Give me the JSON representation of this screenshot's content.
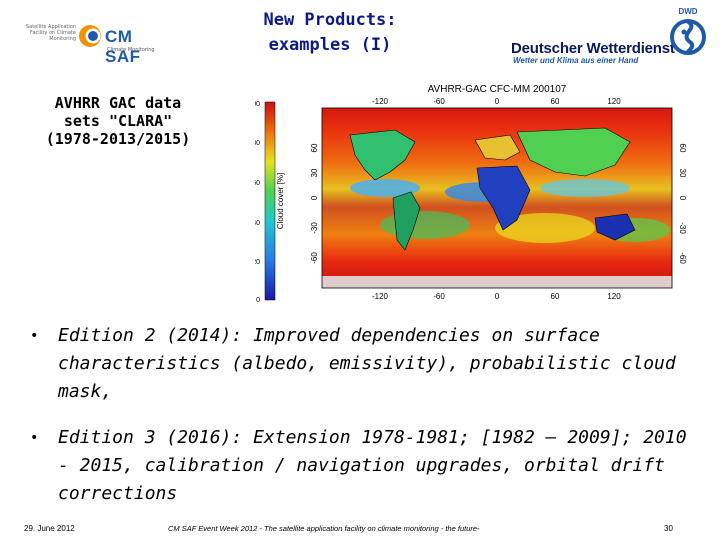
{
  "header": {
    "left_logo_small_text": "Satellite Application Facility on Climate Monitoring",
    "left_logo_name": "CM SAF",
    "left_logo_sub": "Climate Monitoring",
    "title_line1": "New Products:",
    "title_line2": "examples (I)",
    "right_logo_name": "Deutscher Wetterdienst",
    "right_logo_slogan": "Wetter und Klima aus einer Hand",
    "right_logo_abbrev": "DWD"
  },
  "subtitle": {
    "line1": "AVHRR GAC data",
    "line2": "sets \"CLARA\"",
    "line3": "(1978-2013/2015)"
  },
  "figure": {
    "map_title": "AVHRR-GAC CFC-MM 200107",
    "colorbar_label": "Cloud cover [%]",
    "colorbar_ticks": [
      "100",
      "80",
      "60",
      "40",
      "20",
      "0"
    ],
    "top_lon_ticks": [
      "-120",
      "-60",
      "0",
      "60",
      "120"
    ],
    "bottom_lon_ticks": [
      "-120",
      "-60",
      "0",
      "60",
      "120"
    ],
    "left_lat_ticks": [
      "60",
      "30",
      "0",
      "-30",
      "-60"
    ],
    "right_lat_ticks": [
      "60",
      "30",
      "0",
      "-30",
      "-60"
    ]
  },
  "bullets": [
    "Edition 2 (2014): Improved dependencies on surface characteristics (albedo, emissivity), probabilistic cloud mask,",
    "Edition 3 (2016): Extension 1978-1981; [1982 – 2009]; 2010 - 2015, calibration / navigation upgrades, orbital drift corrections"
  ],
  "bullet_symbol": "•",
  "footer": {
    "date": "29. June 2012",
    "event": "CM SAF Event Week 2012 - The satellite application facility on climate monitoring - the future-",
    "page": "30"
  },
  "colors": {
    "title": "#0a1a8a",
    "cmsaf_blue": "#1e5aa8",
    "cmsaf_orange": "#f39200",
    "dwd_navy": "#0a1a5a"
  }
}
